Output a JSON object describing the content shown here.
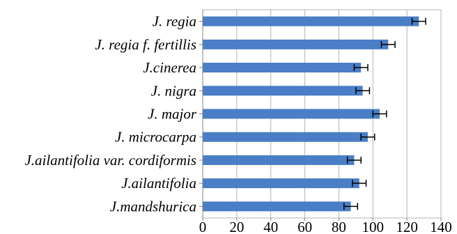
{
  "chart_data": {
    "type": "bar",
    "orientation": "horizontal",
    "categories": [
      "J. regia",
      "J. regia f. fertillis",
      "J.cinerea",
      "J. nigra",
      "J. major",
      "J. microcarpa",
      "J.ailantifolia var. cordiformis",
      "J.ailantifolia",
      "J.mandshurica"
    ],
    "values": [
      127,
      109,
      93,
      94,
      104,
      97,
      89,
      92,
      87
    ],
    "error": [
      4,
      4,
      4,
      4,
      4,
      4,
      4,
      4,
      4
    ],
    "xlim": [
      0,
      140
    ],
    "xticks": [
      0,
      20,
      40,
      60,
      80,
      100,
      120,
      140
    ],
    "title": "",
    "xlabel": "",
    "ylabel": "",
    "grid": "vertical",
    "bar_color": "#4a7ec6"
  }
}
